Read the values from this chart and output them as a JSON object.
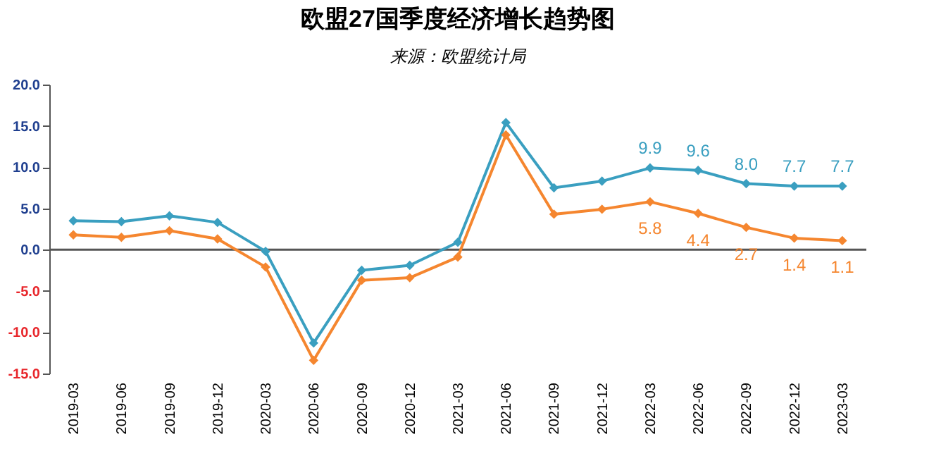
{
  "chart_data": {
    "type": "line",
    "title": "欧盟27国季度经济增长趋势图",
    "subtitle": "来源：欧盟统计局",
    "categories": [
      "2019-03",
      "2019-06",
      "2019-09",
      "2019-12",
      "2020-03",
      "2020-06",
      "2020-09",
      "2020-12",
      "2021-03",
      "2021-06",
      "2021-09",
      "2021-12",
      "2022-03",
      "2022-06",
      "2022-09",
      "2022-12",
      "2023-03"
    ],
    "series": [
      {
        "color": "#3a9fc0",
        "values": [
          3.5,
          3.4,
          4.1,
          3.3,
          -0.2,
          -11.3,
          -2.5,
          -1.9,
          0.9,
          15.4,
          7.5,
          8.3,
          9.9,
          9.6,
          8.0,
          7.7,
          7.7
        ],
        "value_labels": [
          null,
          null,
          null,
          null,
          null,
          null,
          null,
          null,
          null,
          null,
          null,
          null,
          "9.9",
          "9.6",
          "8.0",
          "7.7",
          "7.7"
        ]
      },
      {
        "color": "#f5862f",
        "values": [
          1.8,
          1.5,
          2.3,
          1.3,
          -2.1,
          -13.4,
          -3.7,
          -3.4,
          -0.9,
          13.9,
          4.3,
          4.9,
          5.8,
          4.4,
          2.7,
          1.4,
          1.1
        ],
        "value_labels": [
          null,
          null,
          null,
          null,
          null,
          null,
          null,
          null,
          null,
          null,
          null,
          null,
          "5.8",
          "4.4",
          "2.7",
          "1.4",
          "1.1"
        ]
      }
    ],
    "ylim": [
      -15,
      20
    ],
    "yticks": [
      {
        "value": -15,
        "label": "-15.0"
      },
      {
        "value": -10,
        "label": "-10.0"
      },
      {
        "value": -5,
        "label": "-5.0"
      },
      {
        "value": 0,
        "label": "0.0"
      },
      {
        "value": 5,
        "label": "5.0"
      },
      {
        "value": 10,
        "label": "10.0"
      },
      {
        "value": 15,
        "label": "15.0"
      },
      {
        "value": 20,
        "label": "20.0"
      }
    ],
    "ref_lines": [
      {
        "axis": "y",
        "value": 0,
        "color": "#555555"
      }
    ],
    "marker": "diamond",
    "grid": false
  }
}
